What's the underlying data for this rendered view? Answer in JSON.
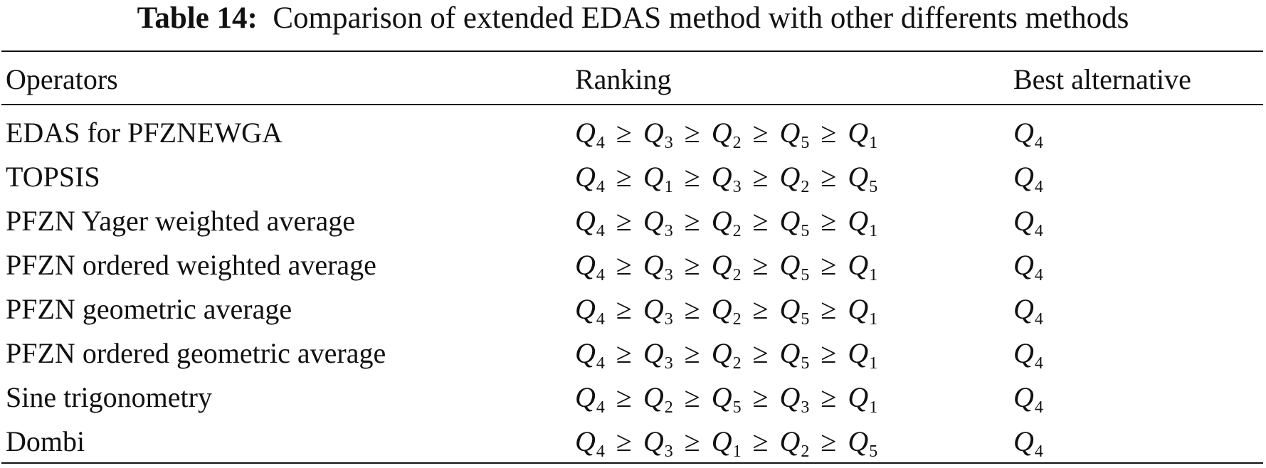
{
  "caption": {
    "label": "Table 14:",
    "text": "Comparison of extended EDAS method with other differents methods"
  },
  "headers": {
    "operators": "Operators",
    "ranking": "Ranking",
    "best": "Best alternative"
  },
  "rows": [
    {
      "operator": "EDAS for PFZNEWGA",
      "ranking": [
        "Q4",
        "Q3",
        "Q2",
        "Q5",
        "Q1"
      ],
      "best": "Q4"
    },
    {
      "operator": "TOPSIS",
      "ranking": [
        "Q4",
        "Q1",
        "Q3",
        "Q2",
        "Q5"
      ],
      "best": "Q4"
    },
    {
      "operator": "PFZN Yager weighted average",
      "ranking": [
        "Q4",
        "Q3",
        "Q2",
        "Q5",
        "Q1"
      ],
      "best": "Q4"
    },
    {
      "operator": "PFZN ordered weighted average",
      "ranking": [
        "Q4",
        "Q3",
        "Q2",
        "Q5",
        "Q1"
      ],
      "best": "Q4"
    },
    {
      "operator": "PFZN geometric average",
      "ranking": [
        "Q4",
        "Q3",
        "Q2",
        "Q5",
        "Q1"
      ],
      "best": "Q4"
    },
    {
      "operator": "PFZN ordered geometric average",
      "ranking": [
        "Q4",
        "Q3",
        "Q2",
        "Q5",
        "Q1"
      ],
      "best": "Q4"
    },
    {
      "operator": "Sine trigonometry",
      "ranking": [
        "Q4",
        "Q2",
        "Q5",
        "Q3",
        "Q1"
      ],
      "best": "Q4"
    },
    {
      "operator": "Dombi",
      "ranking": [
        "Q4",
        "Q3",
        "Q1",
        "Q2",
        "Q5"
      ],
      "best": "Q4"
    }
  ]
}
